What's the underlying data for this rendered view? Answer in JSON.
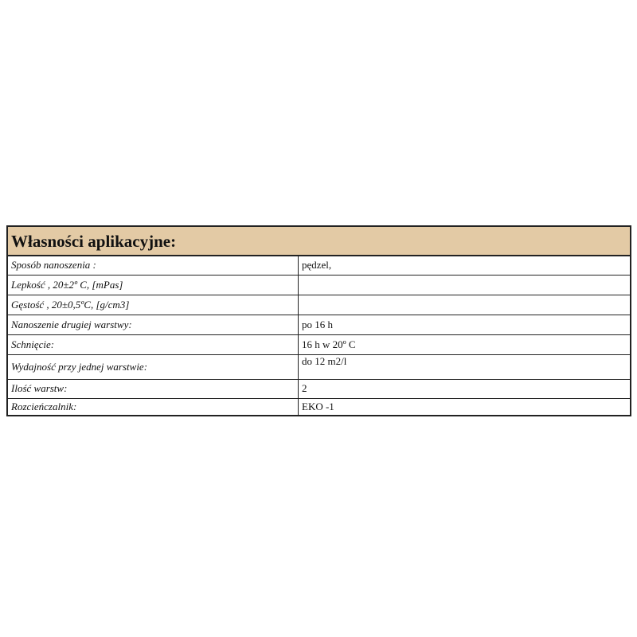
{
  "section_title": "Własności aplikacyjne:",
  "header_color": "#e3caa5",
  "rows": [
    {
      "label": "Sposób nanoszenia :",
      "value": "pędzel,"
    },
    {
      "label": "Lepkość , 20±2º C, [mPas]",
      "value": ""
    },
    {
      "label": "Gęstość , 20±0,5ºC, [g/cm3]",
      "value": ""
    },
    {
      "label": "Nanoszenie drugiej warstwy:",
      "value": "po 16 h"
    },
    {
      "label": "Schnięcie:",
      "value": "16 h w 20º C"
    },
    {
      "label": "Wydajność przy jednej warstwie:",
      "value": "do 12 m2/l"
    },
    {
      "label": "Ilość warstw:",
      "value": "2"
    },
    {
      "label": "Rozcieńczalnik:",
      "value": "EKO -1"
    }
  ]
}
